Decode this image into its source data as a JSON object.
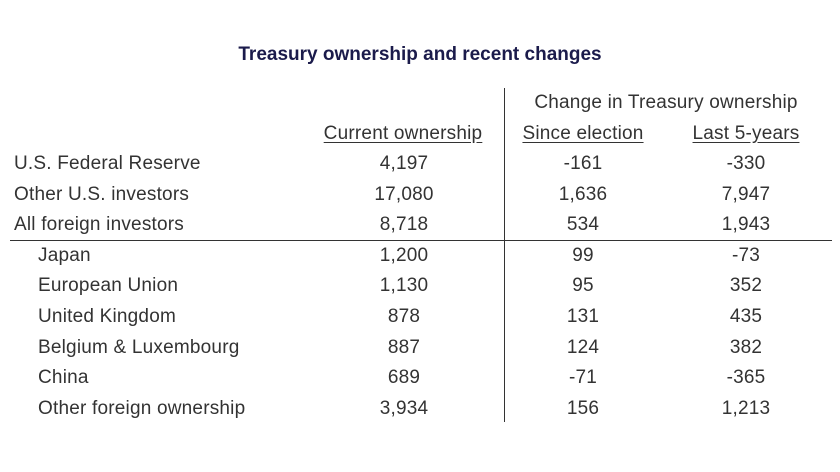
{
  "chart_data": {
    "type": "table",
    "title": "Treasury ownership and recent changes",
    "group_header": "Change in Treasury ownership",
    "columns": [
      "Current ownership",
      "Since election",
      "Last 5-years"
    ],
    "rows": [
      {
        "label": "U.S. Federal Reserve",
        "indent": false,
        "values": [
          "4,197",
          "-161",
          "-330"
        ]
      },
      {
        "label": "Other U.S. investors",
        "indent": false,
        "values": [
          "17,080",
          "1,636",
          "7,947"
        ]
      },
      {
        "label": "All foreign investors",
        "indent": false,
        "values": [
          "8,718",
          "534",
          "1,943"
        ]
      },
      {
        "label": "Japan",
        "indent": true,
        "values": [
          "1,200",
          "99",
          "-73"
        ]
      },
      {
        "label": "European Union",
        "indent": true,
        "values": [
          "1,130",
          "95",
          "352"
        ]
      },
      {
        "label": "United Kingdom",
        "indent": true,
        "values": [
          "878",
          "131",
          "435"
        ]
      },
      {
        "label": "Belgium & Luxembourg",
        "indent": true,
        "values": [
          "887",
          "124",
          "382"
        ]
      },
      {
        "label": "China",
        "indent": true,
        "values": [
          "689",
          "-71",
          "-365"
        ]
      },
      {
        "label": "Other foreign ownership",
        "indent": true,
        "values": [
          "3,934",
          "156",
          "1,213"
        ]
      }
    ],
    "colors": {
      "title": "#1b1b4b",
      "text": "#333333"
    }
  }
}
